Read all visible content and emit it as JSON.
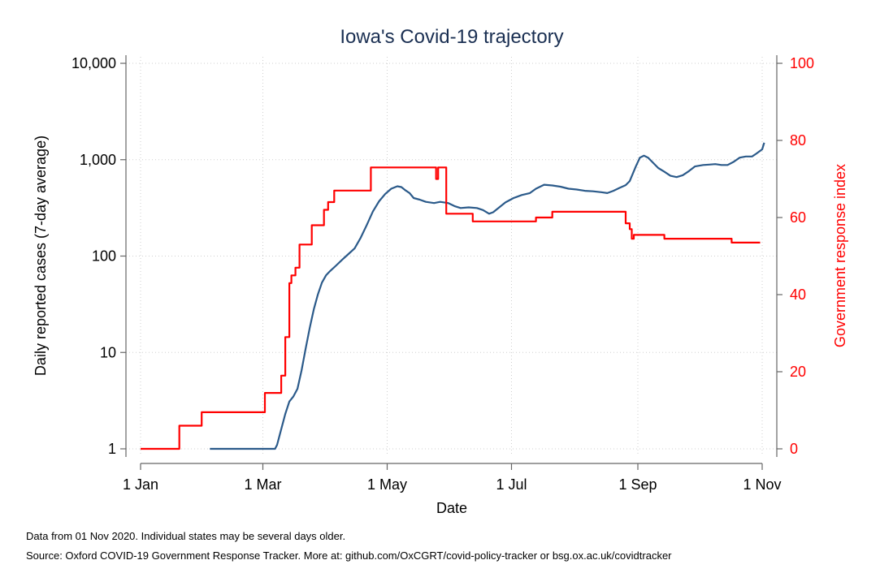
{
  "chart_data": {
    "type": "line",
    "title": "Iowa's Covid-19 trajectory",
    "xlabel": "Date",
    "ylabel": "Daily reported cases (7-day average)",
    "y2label": "Government response index",
    "x_ticks": [
      "1 Jan",
      "1 Mar",
      "1 May",
      "1 Jul",
      "1 Sep",
      "1 Nov"
    ],
    "x_tick_dates": [
      "2020-01-01",
      "2020-03-01",
      "2020-05-01",
      "2020-07-01",
      "2020-09-01",
      "2020-11-01"
    ],
    "xlim": [
      "2020-01-01",
      "2020-11-03"
    ],
    "y_scale": "log",
    "ylim": [
      1,
      10000
    ],
    "y_ticks": [
      1,
      10,
      100,
      1000,
      10000
    ],
    "y_tick_labels": [
      "1",
      "10",
      "100",
      "1,000",
      "10,000"
    ],
    "y2_scale": "linear",
    "y2lim": [
      0,
      100
    ],
    "y2_ticks": [
      0,
      20,
      40,
      60,
      80,
      100
    ],
    "y2_tick_labels": [
      "0",
      "20",
      "40",
      "60",
      "80",
      "100"
    ],
    "grid": true,
    "series": [
      {
        "axis": "left",
        "color": "#2b5a8a",
        "step": false,
        "points": [
          [
            "2020-02-04",
            1
          ],
          [
            "2020-03-07",
            1
          ],
          [
            "2020-03-08",
            1.1
          ],
          [
            "2020-03-10",
            1.6
          ],
          [
            "2020-03-12",
            2.3
          ],
          [
            "2020-03-14",
            3.1
          ],
          [
            "2020-03-16",
            3.5
          ],
          [
            "2020-03-18",
            4.2
          ],
          [
            "2020-03-20",
            6.5
          ],
          [
            "2020-03-22",
            11
          ],
          [
            "2020-03-24",
            18
          ],
          [
            "2020-03-26",
            28
          ],
          [
            "2020-03-28",
            40
          ],
          [
            "2020-03-30",
            53
          ],
          [
            "2020-04-01",
            63
          ],
          [
            "2020-04-03",
            70
          ],
          [
            "2020-04-06",
            80
          ],
          [
            "2020-04-09",
            92
          ],
          [
            "2020-04-12",
            105
          ],
          [
            "2020-04-15",
            120
          ],
          [
            "2020-04-18",
            155
          ],
          [
            "2020-04-21",
            210
          ],
          [
            "2020-04-24",
            290
          ],
          [
            "2020-04-27",
            370
          ],
          [
            "2020-04-30",
            440
          ],
          [
            "2020-05-03",
            500
          ],
          [
            "2020-05-06",
            530
          ],
          [
            "2020-05-08",
            520
          ],
          [
            "2020-05-10",
            480
          ],
          [
            "2020-05-12",
            450
          ],
          [
            "2020-05-14",
            400
          ],
          [
            "2020-05-17",
            385
          ],
          [
            "2020-05-20",
            365
          ],
          [
            "2020-05-24",
            355
          ],
          [
            "2020-05-27",
            365
          ],
          [
            "2020-05-31",
            355
          ],
          [
            "2020-06-03",
            330
          ],
          [
            "2020-06-06",
            315
          ],
          [
            "2020-06-10",
            320
          ],
          [
            "2020-06-14",
            315
          ],
          [
            "2020-06-17",
            300
          ],
          [
            "2020-06-20",
            275
          ],
          [
            "2020-06-22",
            285
          ],
          [
            "2020-06-25",
            320
          ],
          [
            "2020-06-28",
            360
          ],
          [
            "2020-07-02",
            400
          ],
          [
            "2020-07-06",
            430
          ],
          [
            "2020-07-10",
            450
          ],
          [
            "2020-07-13",
            500
          ],
          [
            "2020-07-17",
            550
          ],
          [
            "2020-07-21",
            540
          ],
          [
            "2020-07-25",
            525
          ],
          [
            "2020-07-29",
            500
          ],
          [
            "2020-08-02",
            490
          ],
          [
            "2020-08-06",
            475
          ],
          [
            "2020-08-10",
            470
          ],
          [
            "2020-08-14",
            460
          ],
          [
            "2020-08-17",
            450
          ],
          [
            "2020-08-20",
            475
          ],
          [
            "2020-08-23",
            510
          ],
          [
            "2020-08-26",
            545
          ],
          [
            "2020-08-28",
            600
          ],
          [
            "2020-08-31",
            850
          ],
          [
            "2020-09-02",
            1050
          ],
          [
            "2020-09-04",
            1100
          ],
          [
            "2020-09-06",
            1050
          ],
          [
            "2020-09-08",
            950
          ],
          [
            "2020-09-11",
            820
          ],
          [
            "2020-09-14",
            750
          ],
          [
            "2020-09-17",
            680
          ],
          [
            "2020-09-20",
            660
          ],
          [
            "2020-09-23",
            690
          ],
          [
            "2020-09-26",
            760
          ],
          [
            "2020-09-29",
            850
          ],
          [
            "2020-10-03",
            880
          ],
          [
            "2020-10-06",
            890
          ],
          [
            "2020-10-09",
            900
          ],
          [
            "2020-10-12",
            880
          ],
          [
            "2020-10-15",
            880
          ],
          [
            "2020-10-18",
            950
          ],
          [
            "2020-10-21",
            1050
          ],
          [
            "2020-10-24",
            1080
          ],
          [
            "2020-10-27",
            1080
          ],
          [
            "2020-10-29",
            1150
          ],
          [
            "2020-11-01",
            1280
          ],
          [
            "2020-11-02",
            1500
          ]
        ]
      },
      {
        "axis": "right",
        "color": "#ff0000",
        "step": true,
        "points": [
          [
            "2020-01-01",
            0
          ],
          [
            "2020-01-20",
            6
          ],
          [
            "2020-01-31",
            9.5
          ],
          [
            "2020-03-02",
            14.5
          ],
          [
            "2020-03-10",
            19
          ],
          [
            "2020-03-12",
            29
          ],
          [
            "2020-03-14",
            43
          ],
          [
            "2020-03-15",
            45
          ],
          [
            "2020-03-17",
            47
          ],
          [
            "2020-03-19",
            53
          ],
          [
            "2020-03-25",
            58
          ],
          [
            "2020-03-31",
            62
          ],
          [
            "2020-04-02",
            64
          ],
          [
            "2020-04-05",
            67
          ],
          [
            "2020-04-23",
            73
          ],
          [
            "2020-05-25",
            70
          ],
          [
            "2020-05-26",
            73
          ],
          [
            "2020-05-30",
            61
          ],
          [
            "2020-06-12",
            59
          ],
          [
            "2020-07-13",
            60
          ],
          [
            "2020-07-21",
            61.5
          ],
          [
            "2020-08-26",
            58.5
          ],
          [
            "2020-08-28",
            57
          ],
          [
            "2020-08-29",
            54.5
          ],
          [
            "2020-08-30",
            55.5
          ],
          [
            "2020-09-14",
            54.5
          ],
          [
            "2020-10-17",
            53.5
          ],
          [
            "2020-10-31",
            53.5
          ]
        ]
      }
    ]
  },
  "notes": {
    "line1": "Data from 01 Nov 2020. Individual states may be several days older.",
    "line2": "Source: Oxford COVID-19 Government Response Tracker. More at: github.com/OxCGRT/covid-policy-tracker or bsg.ox.ac.uk/covidtracker"
  }
}
